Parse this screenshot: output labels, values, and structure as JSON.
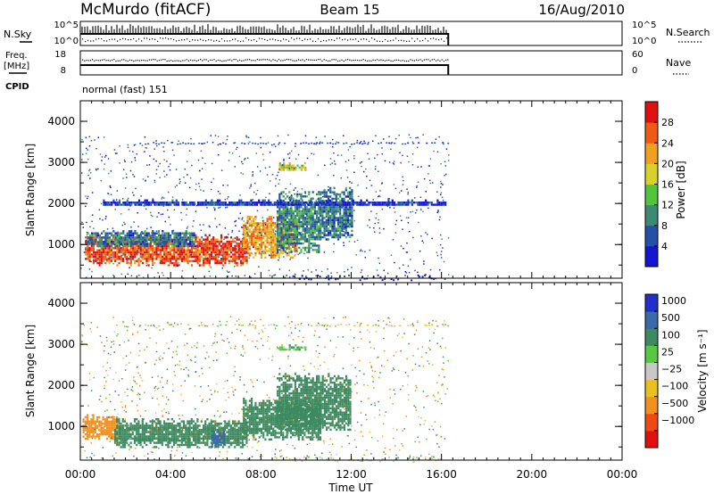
{
  "header": {
    "station": "McMurdo (fitACF)",
    "beam": "Beam 15",
    "date": "16/Aug/2010"
  },
  "top_panels": {
    "nsky_label": "N.Sky",
    "nsky_ticks": [
      "10^5",
      "10^0"
    ],
    "nsearch_label": "N.Search",
    "nsearch_ticks": [
      "10^5",
      "10^0"
    ],
    "freq_label_1": "Freq.",
    "freq_label_2": "[MHz]",
    "freq_ticks": [
      "18",
      "8"
    ],
    "nave_label": "Nave",
    "nave_ticks": [
      "60",
      "0"
    ],
    "cpid_label": "CPID",
    "cpid_value": "normal (fast) 151"
  },
  "x_axis": {
    "label": "Time UT",
    "ticks": [
      "00:00",
      "04:00",
      "08:00",
      "12:00",
      "16:00",
      "20:00",
      "00:00"
    ]
  },
  "colors": {
    "power_scale": [
      "#1515d0",
      "#2550a8",
      "#3d8a73",
      "#52c43e",
      "#d9d12b",
      "#f0a020",
      "#ef5a16",
      "#e01010"
    ],
    "velocity_scale": [
      "#e01010",
      "#ef4a14",
      "#f29020",
      "#e8c020",
      "#c8c8c8",
      "#58c840",
      "#3d8a60",
      "#3a6aa8",
      "#2030c8"
    ]
  },
  "chart_data": [
    {
      "type": "heatmap",
      "name": "power",
      "ylabel": "Slant Range [km]",
      "xlabel": "Time UT",
      "y_ticks": [
        "1000",
        "2000",
        "3000",
        "4000"
      ],
      "ylim": [
        180,
        4500
      ],
      "xlim_hours": [
        0,
        24
      ],
      "colorbar": {
        "label": "Power [dB]",
        "ticks": [
          "4",
          "8",
          "12",
          "16",
          "20",
          "24",
          "28"
        ],
        "range": [
          0,
          32
        ]
      },
      "data_end_hour": 16.3,
      "regions": [
        {
          "t0": 0.2,
          "t1": 7.4,
          "r0": 520,
          "r1": 1250,
          "value": 27
        },
        {
          "t0": 0.3,
          "t1": 5.0,
          "r0": 950,
          "r1": 1350,
          "value": 8
        },
        {
          "t0": 7.2,
          "t1": 9.6,
          "r0": 700,
          "r1": 1700,
          "value": 22
        },
        {
          "t0": 8.7,
          "t1": 10.6,
          "r0": 800,
          "r1": 2300,
          "value": 10
        },
        {
          "t0": 10.6,
          "t1": 12.0,
          "r0": 1100,
          "r1": 2400,
          "value": 8
        },
        {
          "t0": 8.8,
          "t1": 10.0,
          "r0": 2800,
          "r1": 3000,
          "value": 18
        },
        {
          "t0": 1.0,
          "t1": 16.2,
          "r0": 1950,
          "r1": 2100,
          "value": 4
        }
      ]
    },
    {
      "type": "heatmap",
      "name": "velocity",
      "ylabel": "Slant Range [km]",
      "xlabel": "Time UT",
      "y_ticks": [
        "1000",
        "2000",
        "3000",
        "4000"
      ],
      "ylim": [
        180,
        4500
      ],
      "xlim_hours": [
        0,
        24
      ],
      "colorbar": {
        "label": "Velocity [m s⁻¹]",
        "ticks": [
          "1000",
          "500",
          "100",
          "25",
          "−25",
          "−100",
          "−500",
          "−1000"
        ]
      },
      "data_end_hour": 16.3,
      "regions": [
        {
          "t0": 0.1,
          "t1": 1.6,
          "r0": 700,
          "r1": 1300,
          "value": -300
        },
        {
          "t0": 1.5,
          "t1": 7.4,
          "r0": 500,
          "r1": 1200,
          "value": 300
        },
        {
          "t0": 5.8,
          "t1": 6.4,
          "r0": 500,
          "r1": 950,
          "value": 900
        },
        {
          "t0": 7.2,
          "t1": 10.6,
          "r0": 700,
          "r1": 1700,
          "value": 300
        },
        {
          "t0": 8.7,
          "t1": 12.0,
          "r0": 900,
          "r1": 2300,
          "value": 300
        },
        {
          "t0": 8.8,
          "t1": 10.0,
          "r0": 2850,
          "r1": 3000,
          "value": 60
        }
      ]
    }
  ]
}
